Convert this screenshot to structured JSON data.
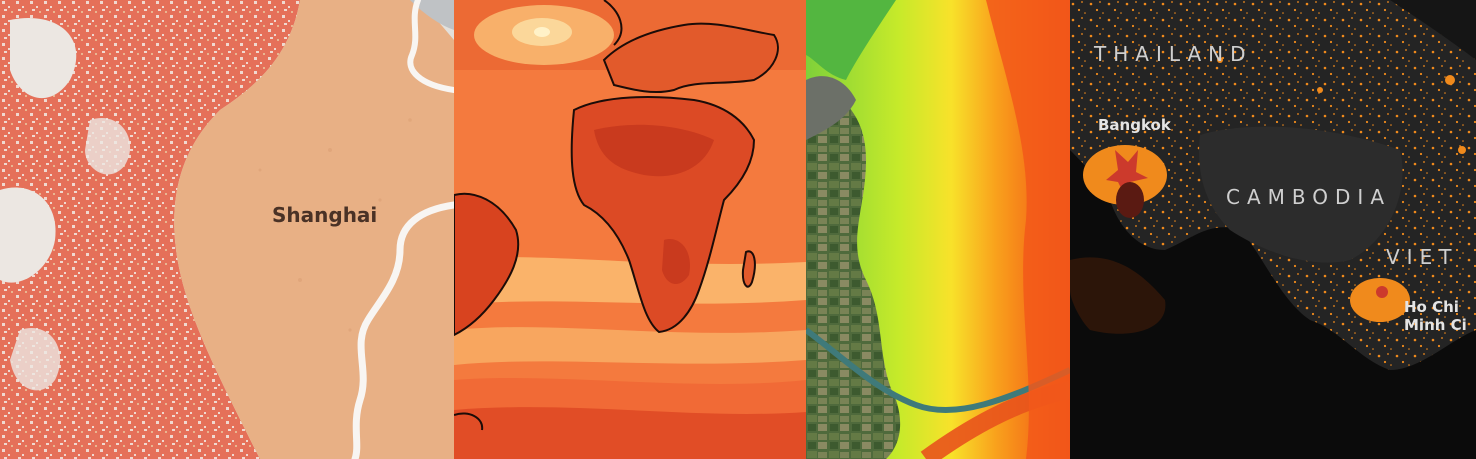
{
  "panels": {
    "shanghai": {
      "city_label": "Shanghai"
    },
    "nightlights": {
      "countries": {
        "thailand": "THAILAND",
        "cambodia": "CAMBODIA",
        "vietnam": "VIET"
      },
      "cities": {
        "bangkok": "Bangkok",
        "hcm_line1": "Ho Chi",
        "hcm_line2": "Minh Ci"
      }
    }
  },
  "colors": {
    "shanghai_urban": "#e0644e",
    "shanghai_land": "#e8b085",
    "shanghai_bg": "#e2e0dc",
    "climate_hot": "#dc4a25",
    "climate_cool": "#fbc27e",
    "terrain_low": "#b9e23a",
    "terrain_high": "#f04a14",
    "night_bg": "#0b0b0b",
    "night_light": "#f08a1c"
  }
}
